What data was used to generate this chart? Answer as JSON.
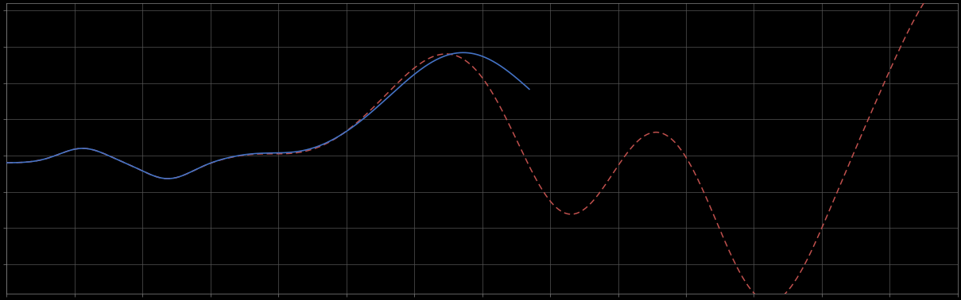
{
  "background_color": "#000000",
  "grid_color": "#555555",
  "plot_bg_color": "#000000",
  "blue_line_color": "#4472C4",
  "red_line_color": "#C0504D",
  "figsize": [
    12.09,
    3.78
  ],
  "dpi": 100,
  "xlim": [
    0,
    100
  ],
  "ylim": [
    -6,
    4
  ],
  "spine_color": "#888888",
  "tick_color": "#888888",
  "grid_nx": 14,
  "grid_ny": 8
}
